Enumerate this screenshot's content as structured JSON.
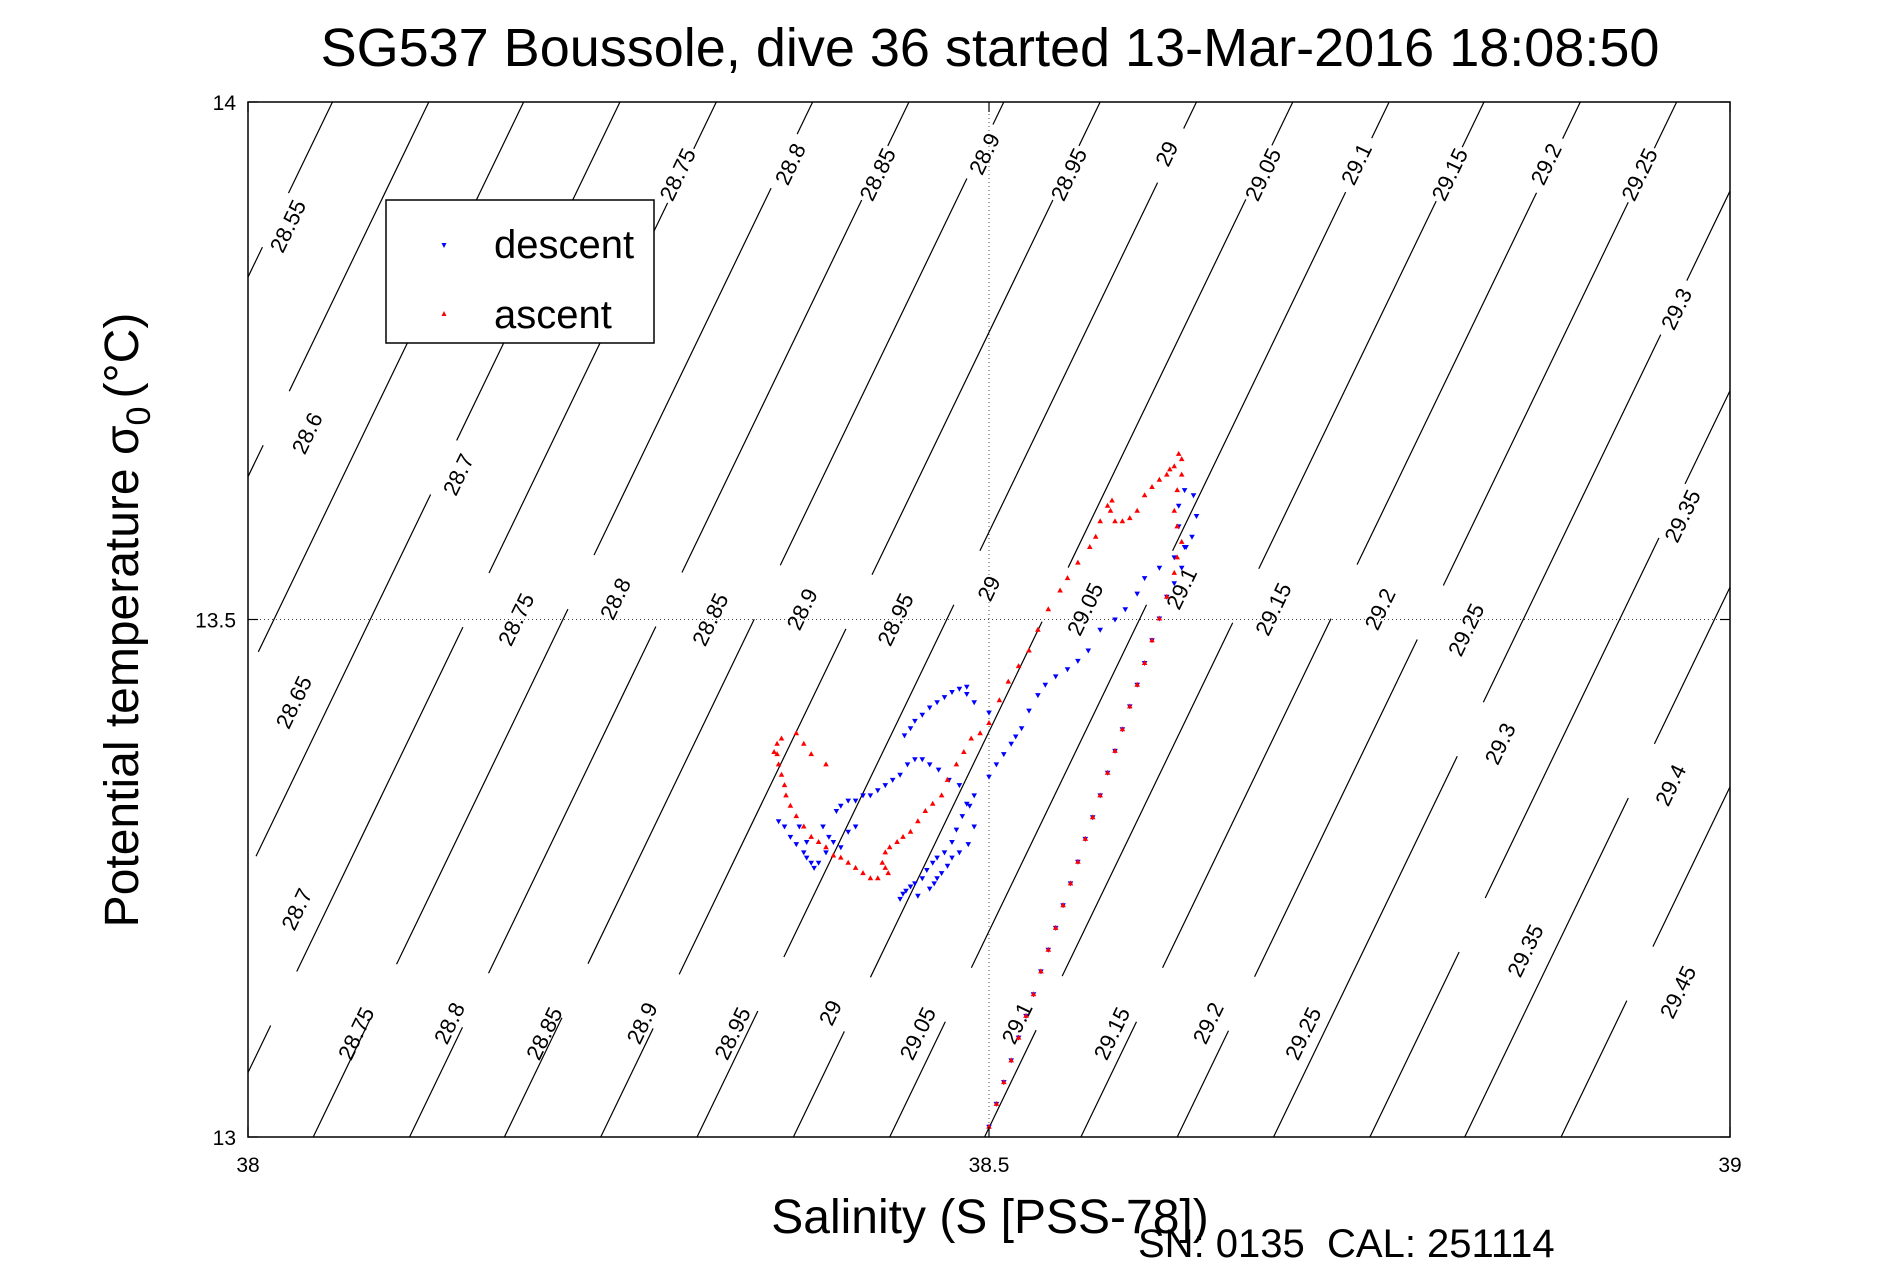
{
  "chart_data": {
    "type": "scatter",
    "title": "SG537 Boussole, dive 36 started 13-Mar-2016 18:08:50",
    "xlabel": "Salinity (S [PSS-78])",
    "ylabel_main": "Potential temperature σ",
    "ylabel_sub": "0",
    "ylabel_unit": "(°C)",
    "xlim": [
      38,
      39
    ],
    "ylim": [
      13,
      14
    ],
    "xticks": [
      38,
      38.5,
      39
    ],
    "xtick_labels": [
      "38",
      "38.5",
      "39"
    ],
    "yticks": [
      13,
      13.5,
      14
    ],
    "ytick_labels": [
      "13",
      "13.5",
      "14"
    ],
    "grid": "dotted at tick values",
    "legend_position": "top-left",
    "legend": [
      {
        "label": "descent",
        "color": "#0000ff",
        "marker": "down-triangle"
      },
      {
        "label": "ascent",
        "color": "#ff0000",
        "marker": "up-triangle"
      }
    ],
    "footer": "SN: 0135  CAL: 251114",
    "contours": [
      {
        "level": "28.55",
        "s13": 37.72,
        "s14": 38.057,
        "labels": [
          [
            38.027,
            13.88
          ]
        ]
      },
      {
        "level": "28.6",
        "s13": 37.785,
        "s14": 38.122,
        "labels": [
          [
            38.04,
            13.68
          ]
        ]
      },
      {
        "level": "28.65",
        "s13": 37.849,
        "s14": 38.186,
        "labels": [
          [
            38.031,
            13.42
          ]
        ]
      },
      {
        "level": "28.7",
        "s13": 37.914,
        "s14": 38.251,
        "labels": [
          [
            38.142,
            13.64
          ],
          [
            38.033,
            13.22
          ]
        ]
      },
      {
        "level": "28.75",
        "s13": 37.979,
        "s14": 38.316,
        "labels": [
          [
            38.29,
            13.93
          ],
          [
            38.181,
            13.5
          ],
          [
            38.073,
            13.1
          ]
        ]
      },
      {
        "level": "28.8",
        "s13": 38.044,
        "s14": 38.381,
        "labels": [
          [
            38.366,
            13.94
          ],
          [
            38.248,
            13.52
          ],
          [
            38.136,
            13.11
          ]
        ]
      },
      {
        "level": "28.85",
        "s13": 38.109,
        "s14": 38.446,
        "labels": [
          [
            38.425,
            13.93
          ],
          [
            38.312,
            13.5
          ],
          [
            38.2,
            13.1
          ]
        ]
      },
      {
        "level": "28.9",
        "s13": 38.173,
        "s14": 38.51,
        "labels": [
          [
            38.497,
            13.95
          ],
          [
            38.374,
            13.51
          ],
          [
            38.266,
            13.11
          ]
        ]
      },
      {
        "level": "28.95",
        "s13": 38.238,
        "s14": 38.575,
        "labels": [
          [
            38.554,
            13.93
          ],
          [
            38.437,
            13.5
          ],
          [
            38.327,
            13.1
          ]
        ]
      },
      {
        "level": "29",
        "s13": 38.303,
        "s14": 38.64,
        "labels": [
          [
            38.62,
            13.95
          ],
          [
            38.5,
            13.53
          ],
          [
            38.393,
            13.12
          ]
        ]
      },
      {
        "level": "29.05",
        "s13": 38.368,
        "s14": 38.705,
        "labels": [
          [
            38.685,
            13.93
          ],
          [
            38.565,
            13.51
          ],
          [
            38.452,
            13.1
          ]
        ]
      },
      {
        "level": "29.1",
        "s13": 38.433,
        "s14": 38.77,
        "labels": [
          [
            38.748,
            13.94
          ],
          [
            38.63,
            13.53
          ],
          [
            38.519,
            13.11
          ]
        ]
      },
      {
        "level": "29.15",
        "s13": 38.497,
        "s14": 38.834,
        "labels": [
          [
            38.811,
            13.93
          ],
          [
            38.692,
            13.51
          ],
          [
            38.583,
            13.1
          ]
        ]
      },
      {
        "level": "29.2",
        "s13": 38.562,
        "s14": 38.899,
        "labels": [
          [
            38.876,
            13.94
          ],
          [
            38.764,
            13.51
          ],
          [
            38.648,
            13.11
          ]
        ]
      },
      {
        "level": "29.25",
        "s13": 38.627,
        "s14": 38.964,
        "labels": [
          [
            38.939,
            13.93
          ],
          [
            38.822,
            13.49
          ],
          [
            38.712,
            13.1
          ]
        ]
      },
      {
        "level": "29.3",
        "s13": 38.692,
        "s14": 39.029,
        "labels": [
          [
            38.964,
            13.8
          ],
          [
            38.845,
            13.38
          ]
        ]
      },
      {
        "level": "29.35",
        "s13": 38.757,
        "s14": 39.094,
        "labels": [
          [
            38.968,
            13.6
          ],
          [
            38.862,
            13.18
          ]
        ]
      },
      {
        "level": "29.4",
        "s13": 38.821,
        "s14": 39.158,
        "labels": [
          [
            38.96,
            13.34
          ]
        ]
      },
      {
        "level": "29.45",
        "s13": 38.886,
        "s14": 39.223,
        "labels": [
          [
            38.965,
            13.14
          ]
        ]
      }
    ],
    "series": [
      {
        "name": "descent",
        "color": "#0000ff",
        "marker": "down-triangle",
        "x": [
          38.5,
          38.505,
          38.51,
          38.515,
          38.52,
          38.525,
          38.53,
          38.535,
          38.54,
          38.545,
          38.55,
          38.555,
          38.56,
          38.565,
          38.57,
          38.575,
          38.58,
          38.585,
          38.59,
          38.595,
          38.6,
          38.605,
          38.61,
          38.615,
          38.62,
          38.625,
          38.63,
          38.632,
          38.628,
          38.628,
          38.632,
          38.638,
          38.64,
          38.637,
          38.633,
          38.625,
          38.615,
          38.605,
          38.6,
          38.592,
          38.585,
          38.575,
          38.567,
          38.56,
          38.553,
          38.545,
          38.538,
          38.533,
          38.527,
          38.522,
          38.518,
          38.515,
          38.51,
          38.505,
          38.5,
          38.49,
          38.485,
          38.482,
          38.478,
          38.475,
          38.47,
          38.465,
          38.462,
          38.458,
          38.455,
          38.45,
          38.447,
          38.444,
          38.442,
          38.44,
          38.452,
          38.46,
          38.463,
          38.465,
          38.468,
          38.472,
          38.475,
          38.48,
          38.486,
          38.49,
          38.487,
          38.48,
          38.473,
          38.466,
          38.46,
          38.455,
          38.45,
          38.445,
          38.44,
          38.435,
          38.43,
          38.425,
          38.42,
          38.415,
          38.41,
          38.405,
          38.4,
          38.397,
          38.388,
          38.392,
          38.395,
          38.39,
          38.385,
          38.382,
          38.38,
          38.377,
          38.375,
          38.37,
          38.366,
          38.362,
          38.358,
          38.377,
          38.372,
          38.4,
          38.405,
          38.41,
          38.443,
          38.447,
          38.45,
          38.455,
          38.46,
          38.465,
          38.47,
          38.475,
          38.48,
          38.485,
          38.485,
          38.49,
          38.5
        ],
        "y": [
          13.01,
          13.032,
          13.053,
          13.074,
          13.096,
          13.117,
          13.138,
          13.16,
          13.181,
          13.202,
          13.224,
          13.245,
          13.266,
          13.288,
          13.309,
          13.33,
          13.352,
          13.373,
          13.394,
          13.416,
          13.437,
          13.458,
          13.48,
          13.501,
          13.522,
          13.535,
          13.55,
          13.57,
          13.59,
          13.61,
          13.625,
          13.62,
          13.6,
          13.58,
          13.57,
          13.56,
          13.55,
          13.54,
          13.525,
          13.51,
          13.5,
          13.49,
          13.47,
          13.46,
          13.452,
          13.445,
          13.437,
          13.427,
          13.412,
          13.395,
          13.387,
          13.38,
          13.37,
          13.36,
          13.348,
          13.33,
          13.322,
          13.31,
          13.297,
          13.285,
          13.275,
          13.27,
          13.265,
          13.258,
          13.25,
          13.245,
          13.242,
          13.238,
          13.235,
          13.23,
          13.233,
          13.24,
          13.245,
          13.25,
          13.255,
          13.262,
          13.27,
          13.275,
          13.283,
          13.3,
          13.32,
          13.34,
          13.345,
          13.355,
          13.36,
          13.365,
          13.365,
          13.36,
          13.35,
          13.345,
          13.34,
          13.335,
          13.33,
          13.33,
          13.325,
          13.325,
          13.32,
          13.315,
          13.3,
          13.29,
          13.285,
          13.275,
          13.265,
          13.26,
          13.265,
          13.27,
          13.275,
          13.283,
          13.29,
          13.3,
          13.305,
          13.285,
          13.3,
          13.28,
          13.295,
          13.3,
          13.388,
          13.395,
          13.402,
          13.408,
          13.415,
          13.42,
          13.425,
          13.43,
          13.433,
          13.435,
          13.428,
          13.42,
          13.41
        ]
      },
      {
        "name": "ascent",
        "color": "#ff0000",
        "marker": "up-triangle",
        "x": [
          38.5,
          38.505,
          38.51,
          38.515,
          38.52,
          38.525,
          38.53,
          38.535,
          38.54,
          38.545,
          38.55,
          38.555,
          38.56,
          38.565,
          38.57,
          38.575,
          38.58,
          38.585,
          38.59,
          38.595,
          38.6,
          38.605,
          38.61,
          38.615,
          38.62,
          38.625,
          38.627,
          38.63,
          38.627,
          38.625,
          38.627,
          38.63,
          38.63,
          38.628,
          38.625,
          38.622,
          38.62,
          38.615,
          38.61,
          38.605,
          38.6,
          38.595,
          38.59,
          38.585,
          38.582,
          38.583,
          38.58,
          38.575,
          38.572,
          38.568,
          38.56,
          38.553,
          38.548,
          38.54,
          38.533,
          38.527,
          38.52,
          38.513,
          38.507,
          38.5,
          38.494,
          38.488,
          38.483,
          38.478,
          38.472,
          38.468,
          38.462,
          38.457,
          38.452,
          38.447,
          38.442,
          38.438,
          38.433,
          38.43,
          38.428,
          38.43,
          38.432,
          38.425,
          38.42,
          38.415,
          38.41,
          38.405,
          38.4,
          38.395,
          38.39,
          38.385,
          38.38,
          38.375,
          38.37,
          38.366,
          38.363,
          38.362,
          38.36,
          38.358,
          38.357,
          38.355,
          38.357,
          38.36,
          38.37,
          38.375,
          38.38,
          38.39
        ],
        "y": [
          13.01,
          13.032,
          13.053,
          13.074,
          13.096,
          13.117,
          13.138,
          13.16,
          13.181,
          13.202,
          13.224,
          13.245,
          13.266,
          13.288,
          13.309,
          13.33,
          13.352,
          13.373,
          13.394,
          13.416,
          13.437,
          13.458,
          13.48,
          13.501,
          13.522,
          13.545,
          13.56,
          13.575,
          13.59,
          13.605,
          13.625,
          13.64,
          13.655,
          13.66,
          13.648,
          13.645,
          13.64,
          13.635,
          13.628,
          13.62,
          13.605,
          13.598,
          13.595,
          13.595,
          13.605,
          13.615,
          13.61,
          13.595,
          13.58,
          13.57,
          13.555,
          13.54,
          13.528,
          13.51,
          13.49,
          13.47,
          13.455,
          13.44,
          13.422,
          13.4,
          13.39,
          13.385,
          13.372,
          13.36,
          13.345,
          13.33,
          13.322,
          13.315,
          13.305,
          13.295,
          13.29,
          13.285,
          13.28,
          13.275,
          13.265,
          13.26,
          13.255,
          13.25,
          13.25,
          13.255,
          13.26,
          13.265,
          13.27,
          13.272,
          13.28,
          13.285,
          13.29,
          13.3,
          13.31,
          13.32,
          13.33,
          13.34,
          13.35,
          13.36,
          13.37,
          13.372,
          13.38,
          13.385,
          13.39,
          13.38,
          13.37,
          13.36
        ]
      }
    ]
  }
}
